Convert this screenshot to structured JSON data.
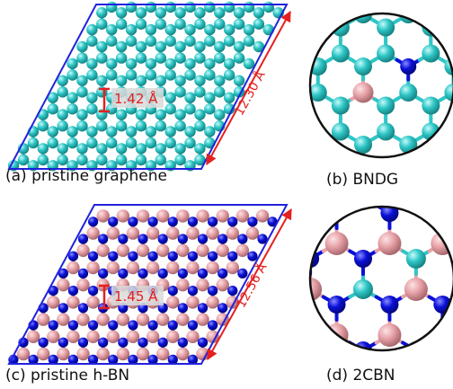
{
  "panels": [
    {
      "id": "a",
      "caption": "(a) pristine graphene",
      "bond_label": "1.42 Å",
      "length_label": "12.30 Å"
    },
    {
      "id": "b",
      "caption": "(b) BNDG"
    },
    {
      "id": "c",
      "caption": "(c) pristine h-BN",
      "bond_label": "1.45 Å",
      "length_label": "12.56 Å"
    },
    {
      "id": "d",
      "caption": "(d) 2CBN"
    }
  ],
  "colors": {
    "carbon": "#2ec6c6",
    "boron": "#e8a3a8",
    "nitrogen": "#0a10d8",
    "cell_border": "#2222dd",
    "annotation": "#e52020",
    "label_bg": "#d9d9d9"
  }
}
